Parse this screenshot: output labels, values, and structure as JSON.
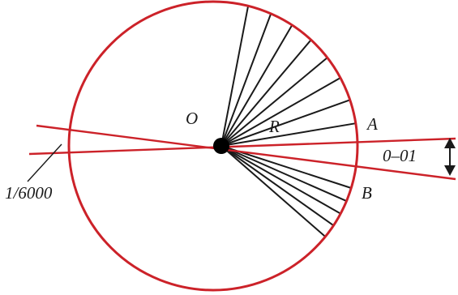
{
  "labels": {
    "center": "O",
    "radius": "R",
    "point_a": "A",
    "point_b": "B",
    "angle_value": "0–01",
    "fraction": "1/6000"
  },
  "colors": {
    "circle": "#cc2229",
    "sight_lines": "#cc2229",
    "spokes": "#1a1a1a",
    "center_dot": "#000000",
    "arrow": "#1a1a1a"
  },
  "spokes": {
    "upper_count": 8,
    "lower_count": 5
  }
}
